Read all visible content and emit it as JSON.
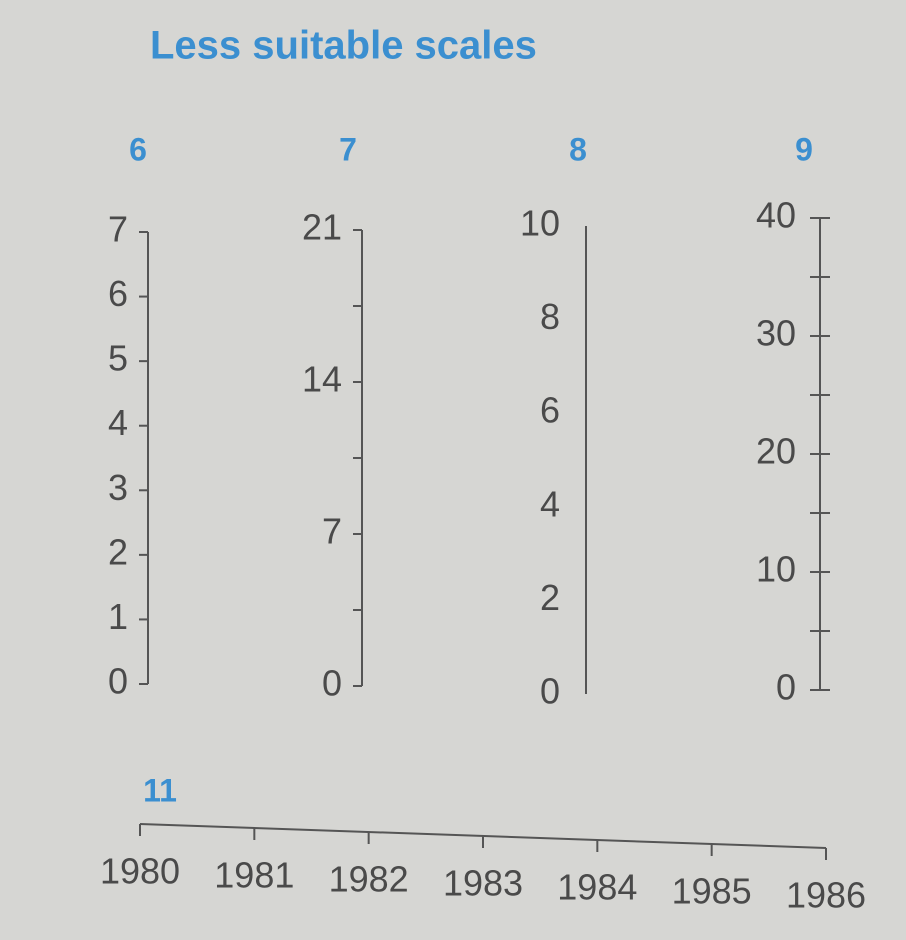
{
  "title": "Less suitable scales",
  "scales": [
    {
      "label": "6",
      "ticks": [
        "0",
        "1",
        "2",
        "3",
        "4",
        "5",
        "6",
        "7"
      ],
      "tick_side": "left",
      "minor_ticks": false
    },
    {
      "label": "7",
      "ticks": [
        "0",
        "7",
        "14",
        "21"
      ],
      "tick_side": "left",
      "minor_ticks": true
    },
    {
      "label": "8",
      "ticks": [
        "0",
        "2",
        "4",
        "6",
        "8",
        "10"
      ],
      "tick_side": "none",
      "minor_ticks": false
    },
    {
      "label": "9",
      "ticks": [
        "0",
        "10",
        "20",
        "30",
        "40"
      ],
      "tick_side": "both",
      "minor_ticks": true
    }
  ],
  "time_scale": {
    "label": "11",
    "ticks": [
      "1980",
      "1981",
      "1982",
      "1983",
      "1984",
      "1985",
      "1986"
    ]
  }
}
